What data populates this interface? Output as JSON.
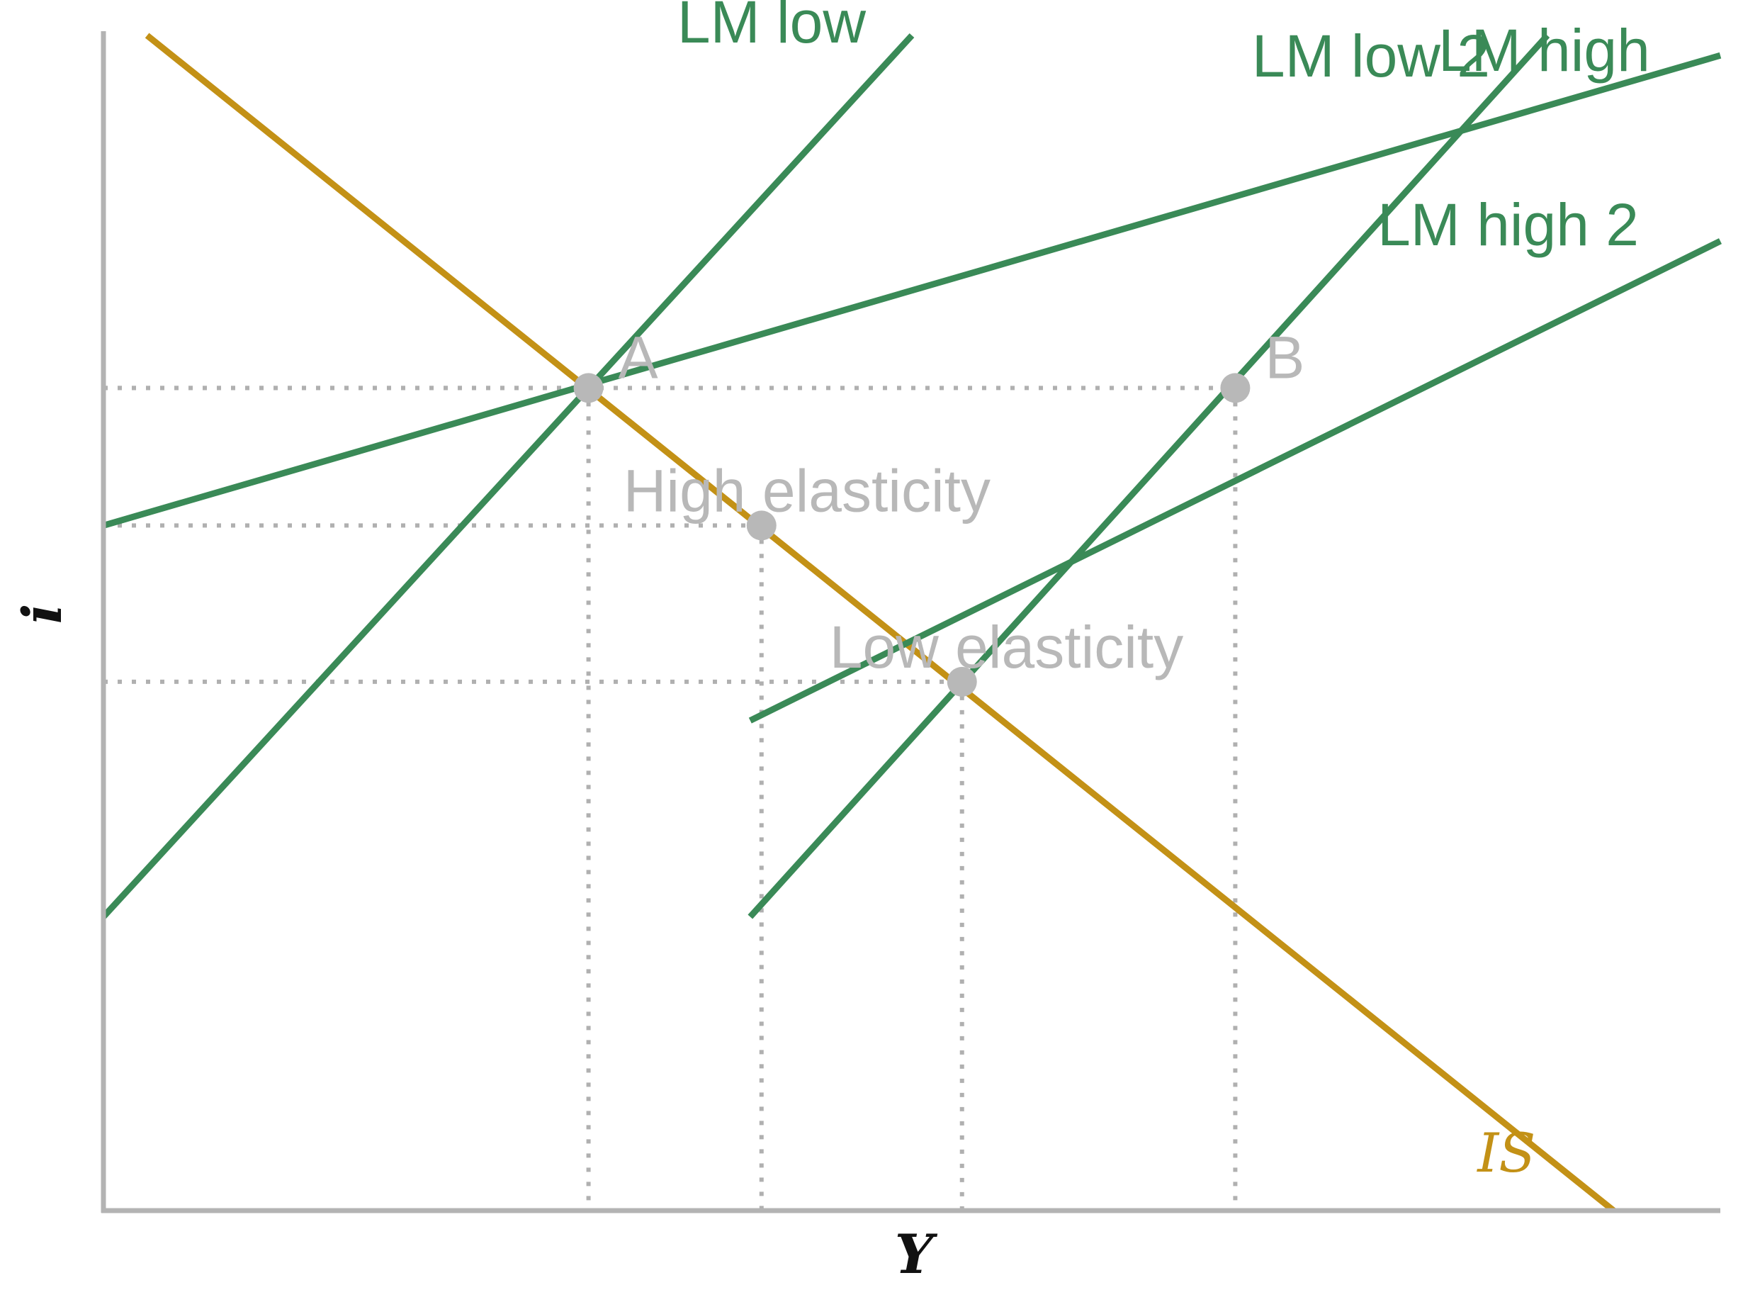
{
  "chart_data": {
    "type": "line",
    "title": "",
    "xlabel": "Y",
    "ylabel": "i",
    "xlim": [
      0,
      10
    ],
    "ylim": [
      0,
      10
    ],
    "grid": false,
    "colors": {
      "axis": "#b3b3b3",
      "lm": "#3a8a57",
      "is": "#c39116",
      "points": "#b8b8b8",
      "axis_label": "#111111"
    },
    "series": [
      {
        "name": "IS",
        "color": "#c39116",
        "x": [
          0.27,
          9.34
        ],
        "y": [
          10.0,
          0.0
        ]
      },
      {
        "name": "LM low",
        "color": "#3a8a57",
        "x": [
          0.0,
          5.0
        ],
        "y": [
          2.5,
          10.0
        ]
      },
      {
        "name": "LM high",
        "color": "#3a8a57",
        "x": [
          4.0,
          8.93
        ],
        "y": [
          2.5,
          10.0
        ]
      },
      {
        "name": "LM low 2",
        "color": "#3a8a57",
        "x": [
          0.0,
          10.0
        ],
        "y": [
          5.83,
          9.83
        ]
      },
      {
        "name": "LM high 2",
        "color": "#3a8a57",
        "x": [
          4.0,
          10.0
        ],
        "y": [
          4.17,
          8.25
        ]
      }
    ],
    "points": [
      {
        "label": "A",
        "x": 3.0,
        "y": 7.0
      },
      {
        "label": "B",
        "x": 7.0,
        "y": 7.0
      },
      {
        "label": "High elasticity",
        "x": 4.07,
        "y": 5.83
      },
      {
        "label": "Low elasticity",
        "x": 5.31,
        "y": 4.5
      }
    ]
  }
}
